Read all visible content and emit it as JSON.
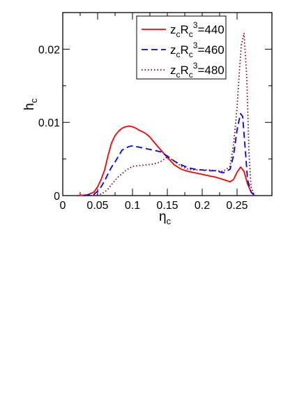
{
  "chart_data": {
    "type": "line",
    "title": "",
    "xlabel": {
      "main": "η",
      "sub": "c"
    },
    "ylabel": {
      "main": "h",
      "sub": "c"
    },
    "xlim": [
      0,
      0.3
    ],
    "ylim": [
      0,
      0.025
    ],
    "x_ticks": [
      "0",
      "0.05",
      "0.1",
      "0.15",
      "0.2",
      "0.25"
    ],
    "x_tick_values": [
      0,
      0.05,
      0.1,
      0.15,
      0.2,
      0.25
    ],
    "y_ticks": [
      "0",
      "0.01",
      "0.02"
    ],
    "y_tick_values": [
      0,
      0.01,
      0.02
    ],
    "grid": false,
    "legend_position": "top-center",
    "series": [
      {
        "name": "z_cR_c^3=440",
        "label_parts": [
          "z",
          "c",
          "R",
          "c",
          "3",
          "=440"
        ],
        "color": "#ff0000",
        "dash": "solid",
        "x": [
          0.02,
          0.035,
          0.045,
          0.05,
          0.055,
          0.06,
          0.065,
          0.07,
          0.075,
          0.08,
          0.085,
          0.09,
          0.095,
          0.1,
          0.105,
          0.11,
          0.115,
          0.12,
          0.125,
          0.13,
          0.14,
          0.15,
          0.16,
          0.17,
          0.18,
          0.19,
          0.2,
          0.21,
          0.22,
          0.23,
          0.24,
          0.245,
          0.25,
          0.255,
          0.26,
          0.265,
          0.27,
          0.275
        ],
        "y": [
          0.0,
          0.0001,
          0.0005,
          0.0012,
          0.0022,
          0.0035,
          0.0055,
          0.0072,
          0.0082,
          0.0088,
          0.0092,
          0.0094,
          0.0095,
          0.0094,
          0.0092,
          0.0089,
          0.0087,
          0.0084,
          0.008,
          0.0074,
          0.0063,
          0.0052,
          0.0042,
          0.0036,
          0.0033,
          0.0031,
          0.0029,
          0.0027,
          0.0025,
          0.0022,
          0.0019,
          0.0022,
          0.0032,
          0.0039,
          0.0033,
          0.0016,
          0.0005,
          0.0
        ]
      },
      {
        "name": "z_cR_c^3=460",
        "label_parts": [
          "z",
          "c",
          "R",
          "c",
          "3",
          "=460"
        ],
        "color": "#0000ff",
        "dash": "dashed",
        "x": [
          0.03,
          0.045,
          0.05,
          0.055,
          0.06,
          0.065,
          0.07,
          0.075,
          0.08,
          0.085,
          0.09,
          0.095,
          0.1,
          0.105,
          0.11,
          0.12,
          0.13,
          0.14,
          0.15,
          0.16,
          0.17,
          0.18,
          0.19,
          0.2,
          0.21,
          0.22,
          0.23,
          0.24,
          0.245,
          0.25,
          0.255,
          0.258,
          0.262,
          0.265,
          0.27,
          0.275
        ],
        "y": [
          0.0,
          0.0002,
          0.0006,
          0.0012,
          0.002,
          0.003,
          0.0039,
          0.0046,
          0.0054,
          0.0062,
          0.0065,
          0.0067,
          0.0068,
          0.0067,
          0.0066,
          0.0064,
          0.0062,
          0.006,
          0.0054,
          0.0047,
          0.0042,
          0.0038,
          0.0036,
          0.0035,
          0.0034,
          0.0034,
          0.0031,
          0.0036,
          0.0055,
          0.009,
          0.0112,
          0.0108,
          0.006,
          0.0022,
          0.0005,
          0.0
        ]
      },
      {
        "name": "z_cR_c^3=480",
        "label_parts": [
          "z",
          "c",
          "R",
          "c",
          "3",
          "=480"
        ],
        "color": "#800000",
        "dash": "dotted",
        "x": [
          0.04,
          0.055,
          0.06,
          0.065,
          0.07,
          0.075,
          0.08,
          0.085,
          0.09,
          0.095,
          0.1,
          0.11,
          0.12,
          0.13,
          0.14,
          0.15,
          0.16,
          0.17,
          0.18,
          0.19,
          0.2,
          0.21,
          0.22,
          0.23,
          0.24,
          0.245,
          0.25,
          0.253,
          0.256,
          0.26,
          0.264,
          0.267,
          0.27,
          0.275
        ],
        "y": [
          0.0,
          0.0002,
          0.0005,
          0.0009,
          0.0015,
          0.0021,
          0.0026,
          0.003,
          0.0034,
          0.0037,
          0.004,
          0.0041,
          0.0042,
          0.0043,
          0.0046,
          0.0053,
          0.0047,
          0.004,
          0.0036,
          0.0035,
          0.0035,
          0.0035,
          0.0034,
          0.0033,
          0.004,
          0.007,
          0.012,
          0.0165,
          0.0205,
          0.0222,
          0.016,
          0.006,
          0.0012,
          0.0
        ]
      }
    ]
  }
}
